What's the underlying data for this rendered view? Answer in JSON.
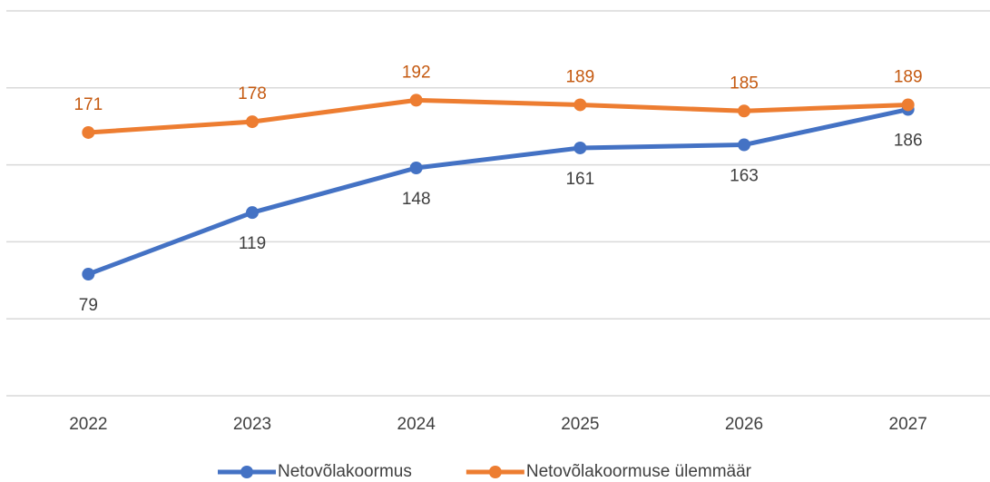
{
  "chart_data": {
    "type": "line",
    "categories": [
      "2022",
      "2023",
      "2024",
      "2025",
      "2026",
      "2027"
    ],
    "series": [
      {
        "name": "Netovõlakoormus",
        "color": "#4472c4",
        "values": [
          79,
          119,
          148,
          161,
          163,
          186
        ]
      },
      {
        "name": "Netovõlakoormuse ülemmäär",
        "color": "#ed7d31",
        "values": [
          171,
          178,
          192,
          189,
          185,
          189
        ]
      }
    ],
    "ylim": [
      0,
      250
    ],
    "yticks": [
      0,
      50,
      100,
      150,
      200,
      250
    ],
    "grid": true
  }
}
